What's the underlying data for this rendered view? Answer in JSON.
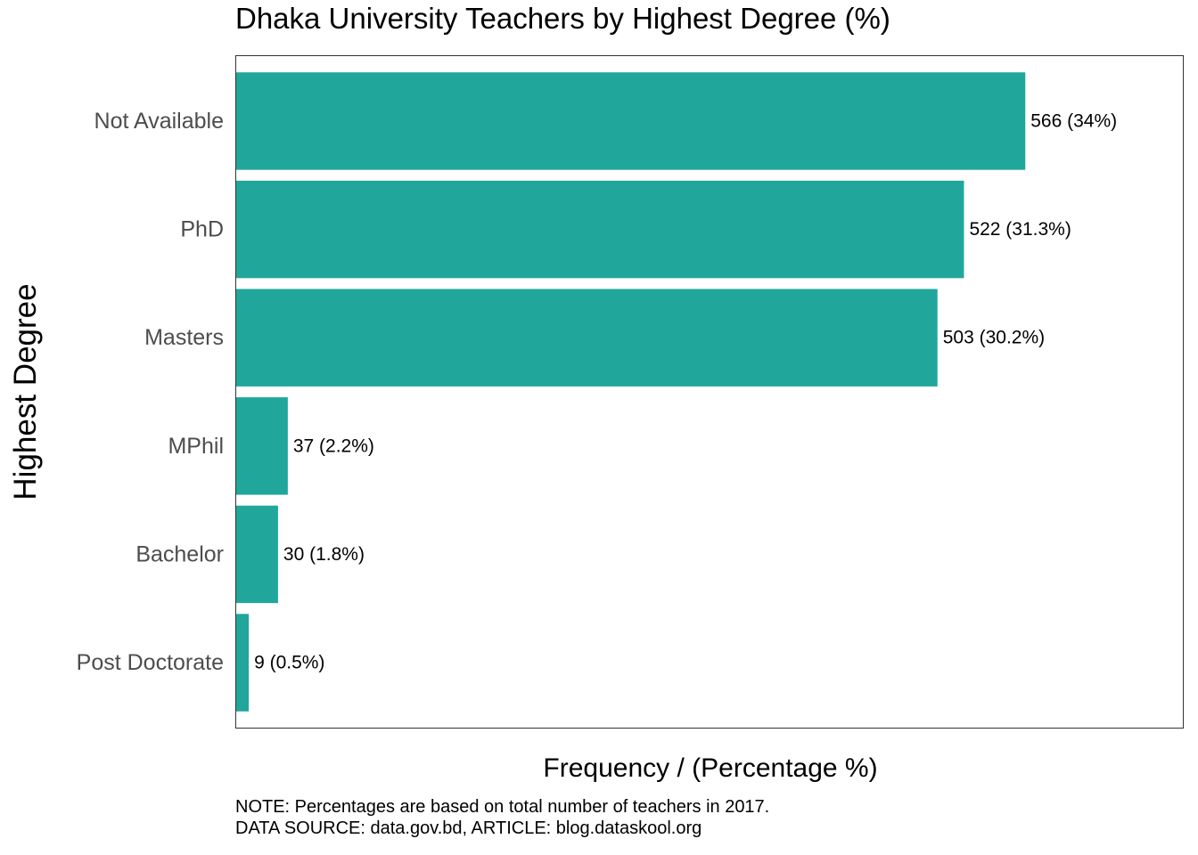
{
  "colors": {
    "bar": "#21A69B",
    "panel_border": "#333333",
    "tick_label": "#4d4d4d"
  },
  "chart_data": {
    "type": "bar",
    "orientation": "horizontal",
    "title": "Dhaka University Teachers by Highest Degree (%)",
    "xlabel": "Frequency / (Percentage %)",
    "ylabel": "Highest Degree",
    "categories": [
      "Not Available",
      "PhD",
      "Masters",
      "MPhil",
      "Bachelor",
      "Post Doctorate"
    ],
    "values": [
      566,
      522,
      503,
      37,
      30,
      9
    ],
    "percentages": [
      34,
      31.3,
      30.2,
      2.2,
      1.8,
      0.5
    ],
    "data_labels": [
      "566 (34%)",
      "522 (31.3%)",
      "503 (30.2%)",
      "37 (2.2%)",
      "30 (1.8%)",
      "9 (0.5%)"
    ],
    "xlim": [
      0,
      679
    ],
    "grid": false,
    "legend": "none"
  },
  "caption": {
    "line1": "NOTE: Percentages are based on total number of teachers in 2017.",
    "line2": "DATA SOURCE: data.gov.bd, ARTICLE: blog.dataskool.org"
  }
}
